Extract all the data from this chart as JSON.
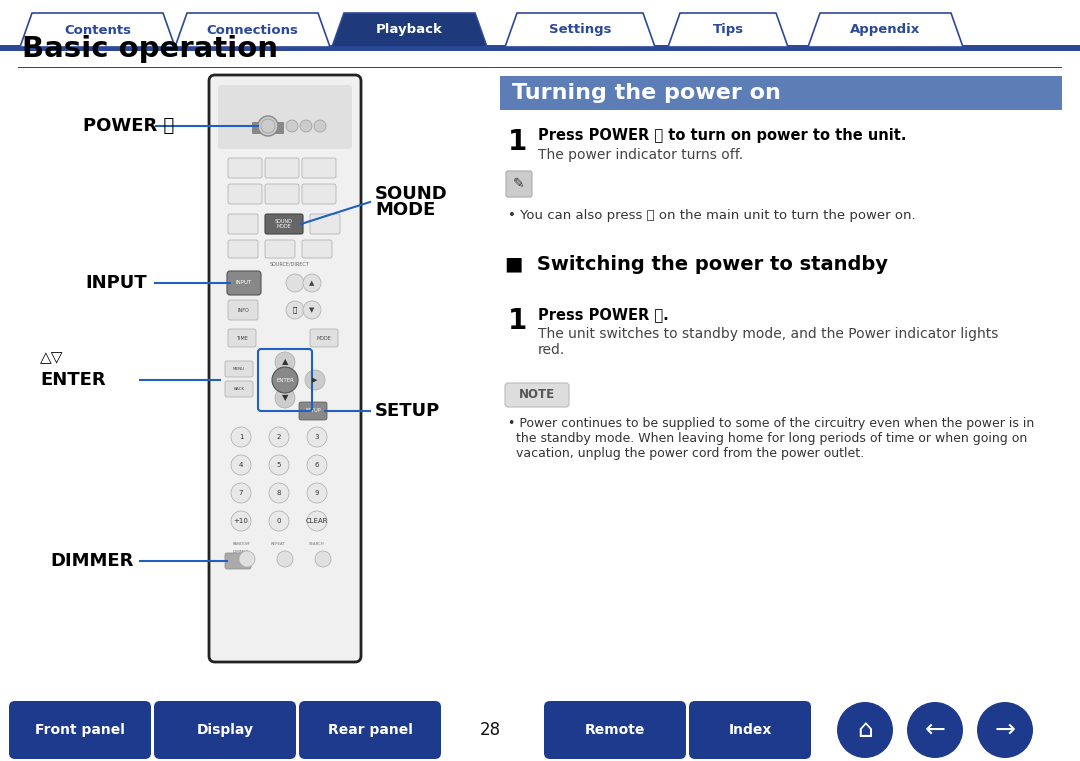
{
  "bg_color": "#ffffff",
  "nav_tab_active_color": "#1e3a7a",
  "nav_tab_inactive_bg": "#ffffff",
  "nav_tab_border_color": "#2c4899",
  "nav_tab_text_inactive": "#2c4899",
  "section_header_color": "#5c7db5",
  "bottom_btn_color": "#1e3a8c",
  "nav_tabs": [
    "Contents",
    "Connections",
    "Playback",
    "Settings",
    "Tips",
    "Appendix"
  ],
  "nav_active_index": 2,
  "page_title": "Basic operation",
  "section_title": "Turning the power on",
  "subsection_title": "■  Switching the power to standby",
  "step1_bold": "Press POWER ⏻ to turn on power to the unit.",
  "step1_sub": "The power indicator turns off.",
  "note_tip": "• You can also press ⏻ on the main unit to turn the power on.",
  "step2_bold": "Press POWER ⏻.",
  "step2_sub1": "The unit switches to standby mode, and the Power indicator lights",
  "step2_sub2": "red.",
  "note_label": "NOTE",
  "note_text1": "• Power continues to be supplied to some of the circuitry even when the power is in",
  "note_text2": "  the standby mode. When leaving home for long periods of time or when going on",
  "note_text3": "  vacation, unplug the power cord from the power outlet.",
  "bottom_btns": [
    "Front panel",
    "Display",
    "Rear panel",
    "Remote",
    "Index"
  ],
  "page_number": "28",
  "remote_body_color": "#1a1a1a",
  "remote_body_edge": "#3a3a3a",
  "remote_btn_color": "#2d2d2d",
  "remote_btn_edge": "#4a4a4a",
  "remote_highlight": "#555555",
  "line_color": "#2060c0"
}
